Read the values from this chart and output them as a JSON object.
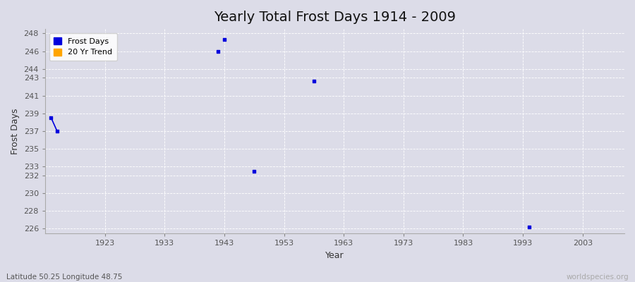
{
  "title": "Yearly Total Frost Days 1914 - 2009",
  "xlabel": "Year",
  "ylabel": "Frost Days",
  "subtitle": "Latitude 50.25 Longitude 48.75",
  "watermark": "worldspecies.org",
  "xlim": [
    1913,
    2010
  ],
  "ylim": [
    225.5,
    248.5
  ],
  "yticks": [
    226,
    228,
    230,
    232,
    233,
    235,
    237,
    239,
    241,
    243,
    244,
    246,
    248
  ],
  "xticks": [
    1923,
    1933,
    1943,
    1953,
    1963,
    1973,
    1983,
    1993,
    2003
  ],
  "line_segments": [
    {
      "x": [
        1914,
        1915
      ],
      "y": [
        238.5,
        237.0
      ]
    }
  ],
  "isolated_points": [
    {
      "year": 1942,
      "value": 246.0
    },
    {
      "year": 1943,
      "value": 247.3
    },
    {
      "year": 1948,
      "value": 232.5
    },
    {
      "year": 1958,
      "value": 242.6
    },
    {
      "year": 1994,
      "value": 226.2
    }
  ],
  "point_color": "#0000dd",
  "trend_color": "#FFA500",
  "bg_color": "#dcdce8",
  "plot_bg_color": "#dcdce8",
  "grid_color": "#ffffff",
  "legend_labels": [
    "Frost Days",
    "20 Yr Trend"
  ],
  "legend_colors": [
    "#0000dd",
    "#FFA500"
  ],
  "title_fontsize": 14,
  "axis_fontsize": 9,
  "tick_fontsize": 8
}
